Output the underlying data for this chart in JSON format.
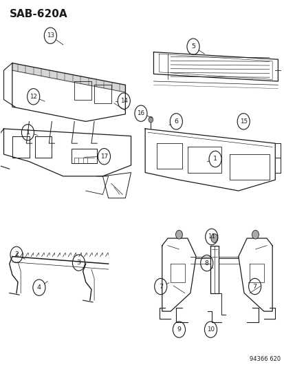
{
  "title": "SAB-620A",
  "fig_code": "94366 620",
  "bg_color": "#ffffff",
  "line_color": "#1a1a1a",
  "title_fontsize": 11,
  "label_fontsize": 6.8
}
